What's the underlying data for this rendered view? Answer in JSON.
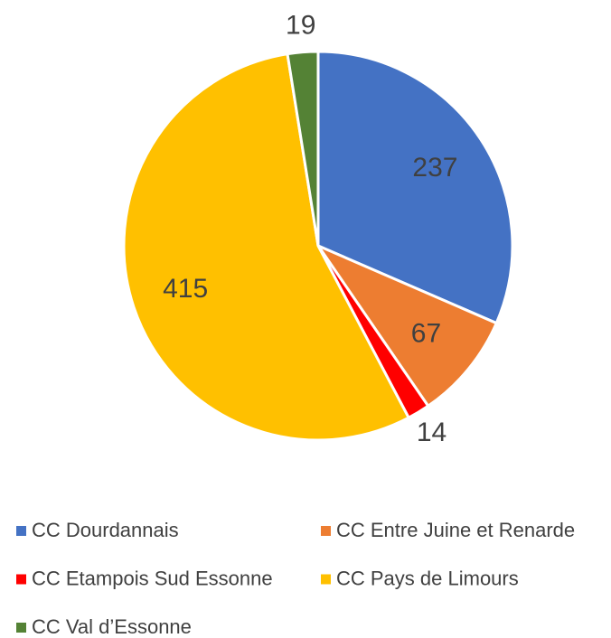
{
  "chart_data": {
    "type": "pie",
    "categories": [
      "CC Dourdannais",
      "CC Entre Juine et Renarde",
      "CC Etampois Sud Essonne",
      "CC Pays de Limours",
      "CC Val d’Essonne"
    ],
    "values": [
      237,
      67,
      14,
      415,
      19
    ],
    "colors": [
      "#4472c4",
      "#ed7d31",
      "#ff0000",
      "#ffc000",
      "#548235"
    ],
    "legend": "bottom"
  }
}
